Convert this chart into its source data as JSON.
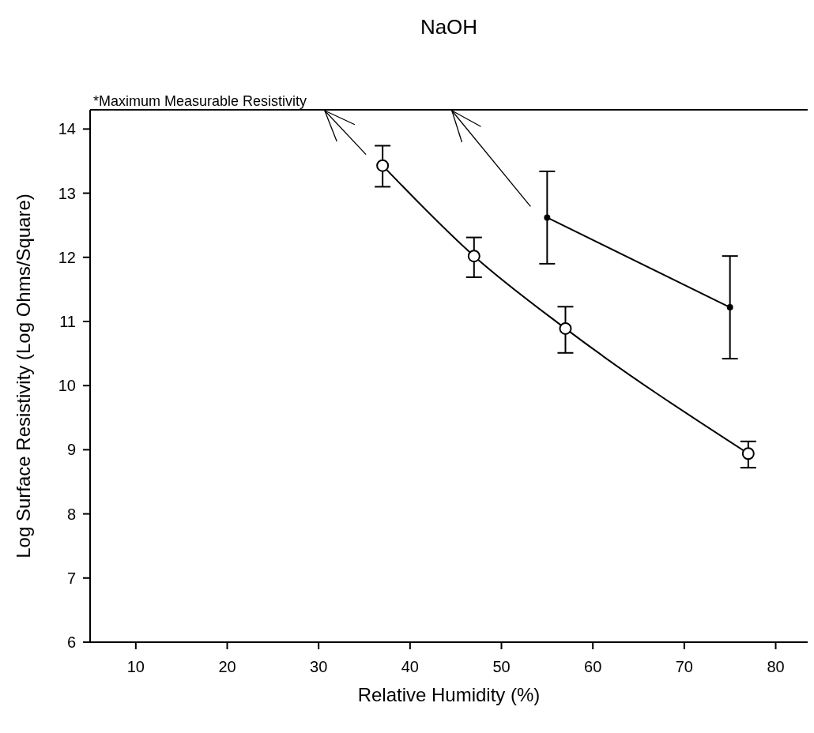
{
  "chart_data": {
    "type": "line",
    "title": "NaOH",
    "xlabel": "Relative Humidity (%)",
    "ylabel": "Log Surface Resistivity (Log Ohms/Square)",
    "xlim": [
      5,
      83.5
    ],
    "xticks": [
      10,
      20,
      30,
      40,
      50,
      60,
      70,
      80
    ],
    "ylim": [
      6,
      14.3
    ],
    "yticks": [
      6,
      7,
      8,
      9,
      10,
      11,
      12,
      13,
      14
    ],
    "grid": false,
    "line_style": "solid",
    "ref_lines": [
      {
        "axis": "y",
        "value": 14.3,
        "label": "*Maximum Measurable Resistivity"
      }
    ],
    "series": [
      {
        "color": "#000000",
        "marker": "circle",
        "x": [
          37,
          47,
          57,
          77
        ],
        "values": [
          13.43,
          12.02,
          10.89,
          8.94
        ],
        "errors": [
          [
            13.1,
            13.74
          ],
          [
            11.69,
            12.31
          ],
          [
            10.51,
            11.23
          ],
          [
            8.72,
            9.13
          ]
        ]
      },
      {
        "color": "#000000",
        "marker": "circle",
        "x": [
          55,
          75
        ],
        "values": [
          12.62,
          11.22
        ],
        "errors": [
          [
            11.9,
            13.34
          ],
          [
            10.42,
            12.02
          ]
        ]
      }
    ]
  }
}
